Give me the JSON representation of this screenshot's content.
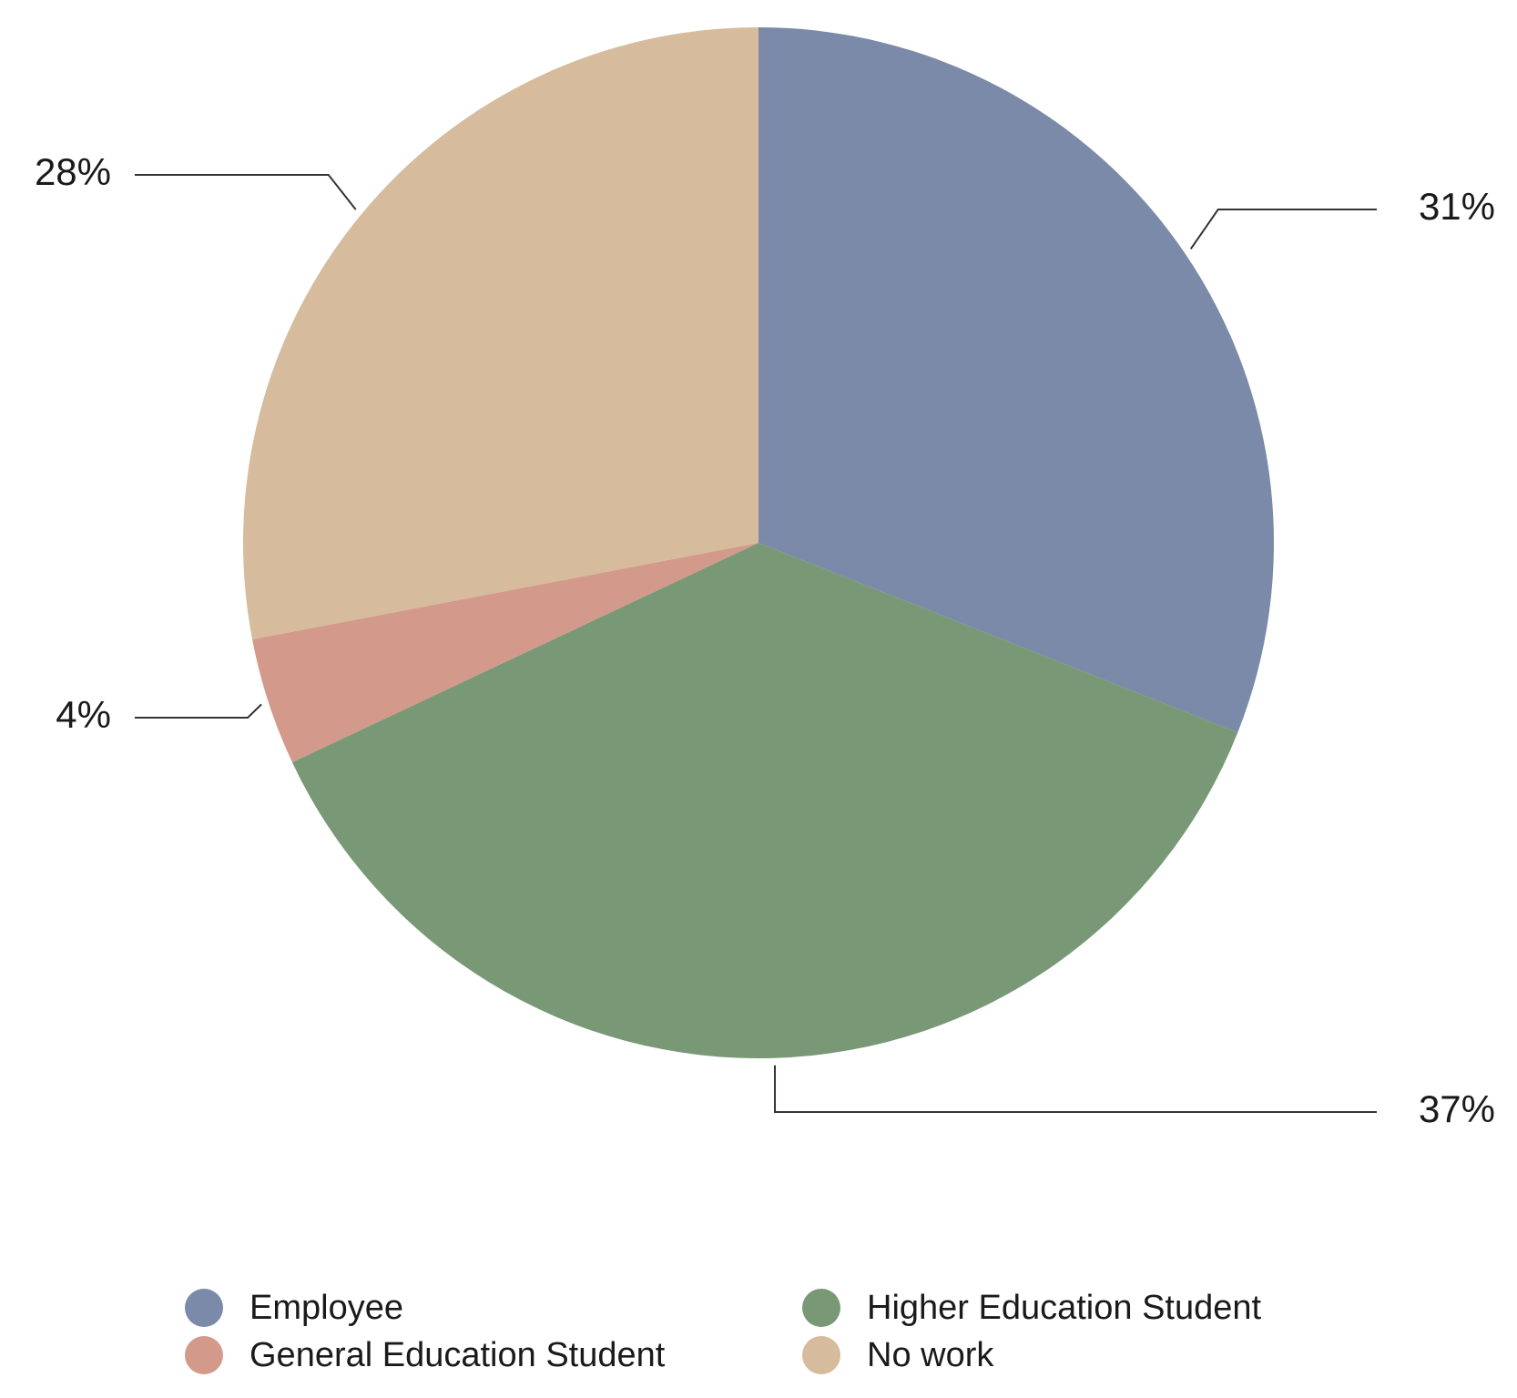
{
  "chart_data": {
    "type": "pie",
    "categories": [
      "Employee",
      "Higher Education Student",
      "General Education Student",
      "No work"
    ],
    "values": [
      31,
      37,
      4,
      28
    ],
    "value_labels": [
      "31%",
      "37%",
      "4%",
      "28%"
    ],
    "colors": [
      "#7a8aa8",
      "#789876",
      "#d39a8c",
      "#d6bb9c"
    ]
  }
}
